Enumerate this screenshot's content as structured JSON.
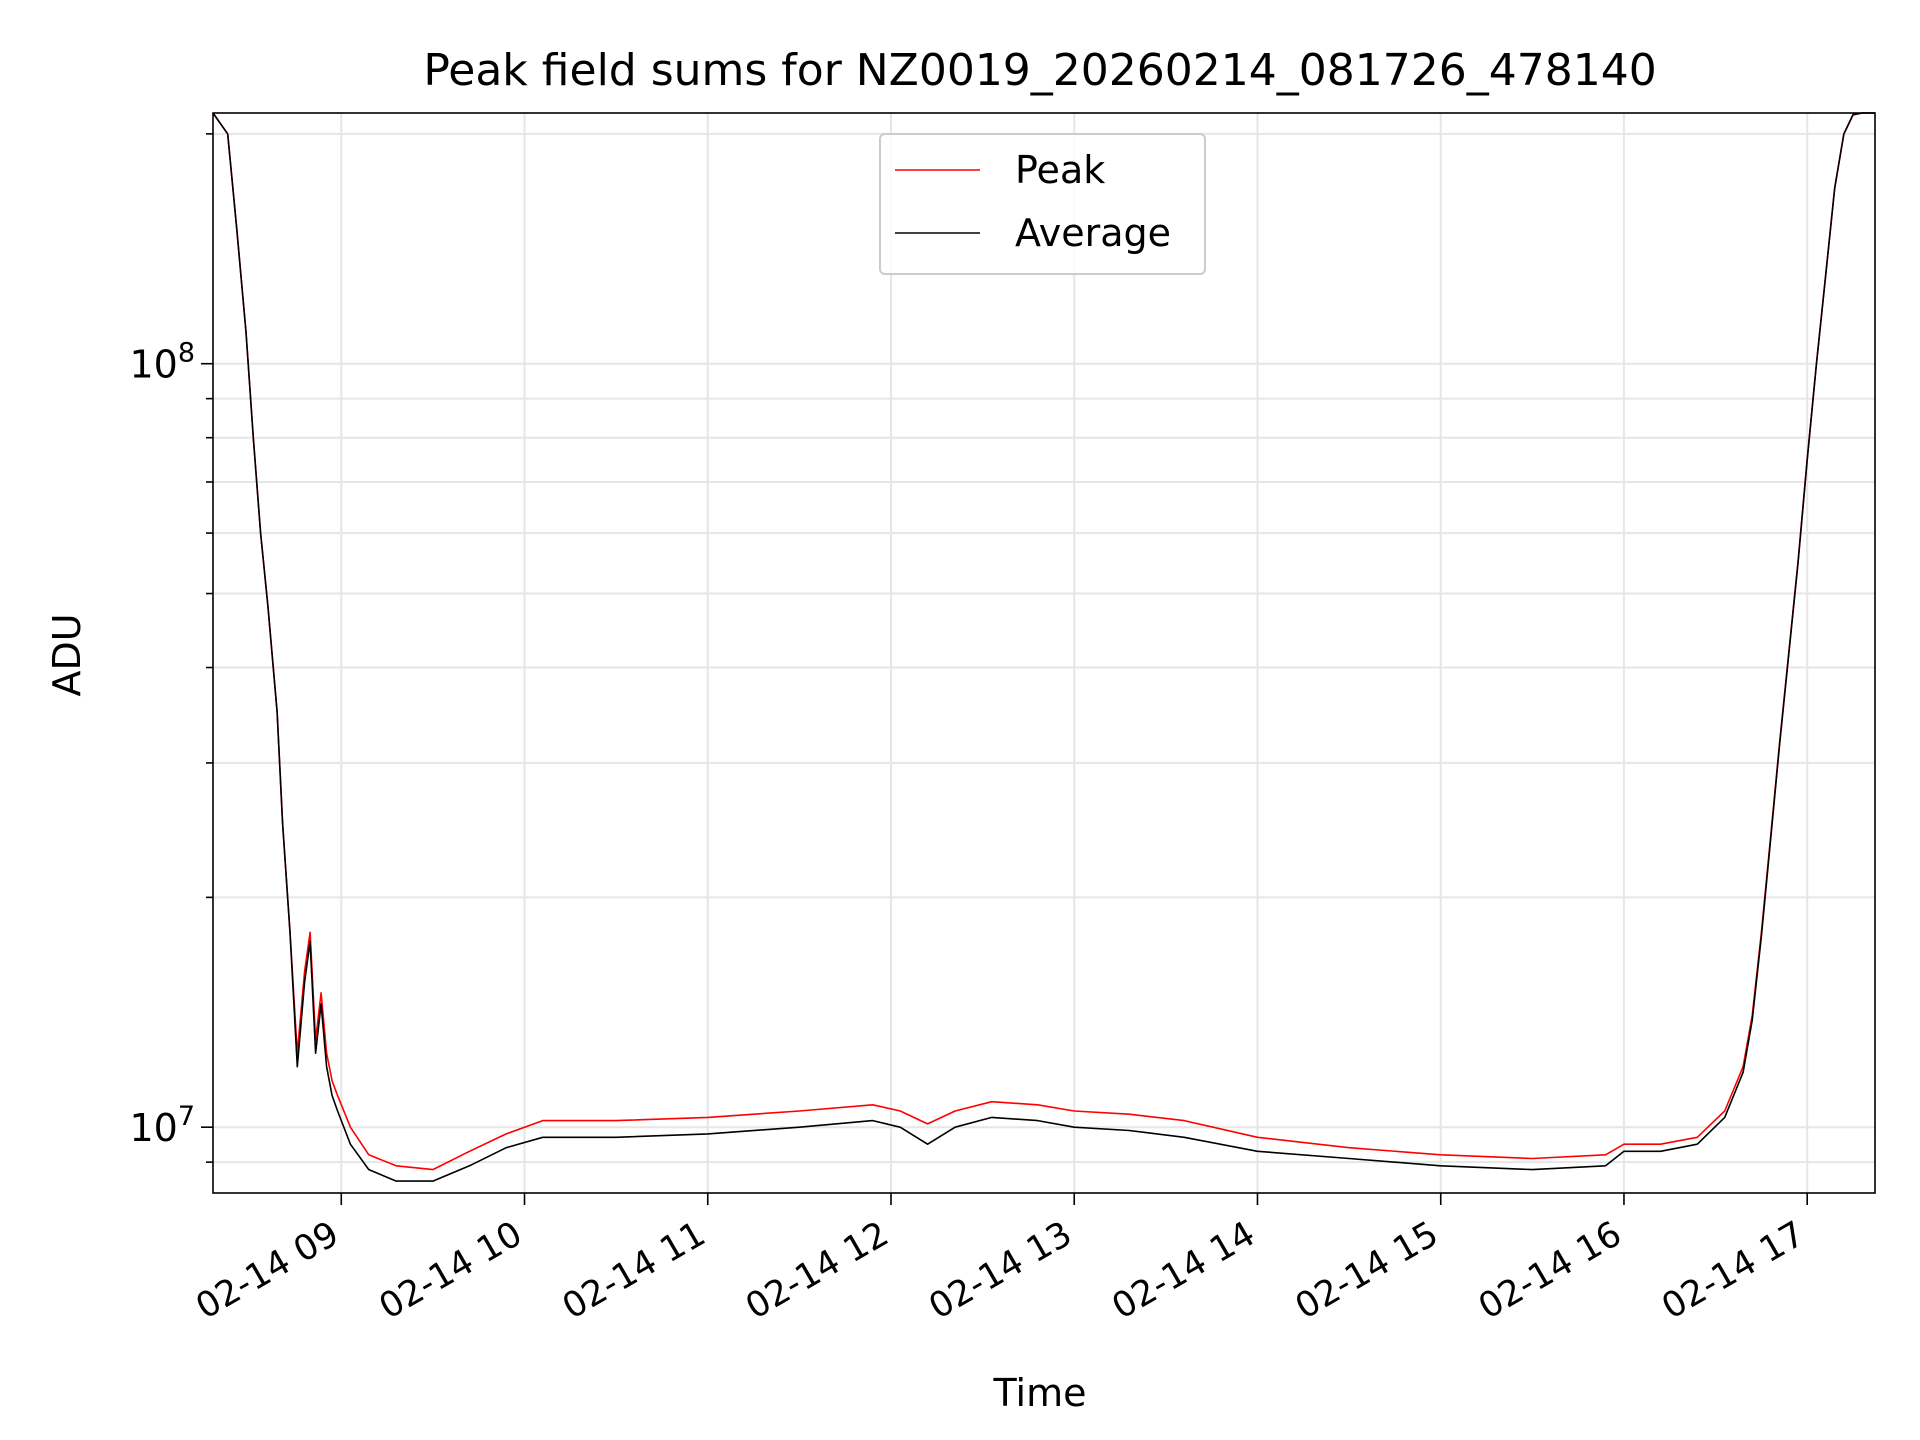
{
  "chart_data": {
    "type": "line",
    "title": "Peak field sums for NZ0019_20260214_081726_478140",
    "xlabel": "Time",
    "ylabel": "ADU",
    "yscale": "log",
    "grid": true,
    "legend_position": "top-center",
    "xlim": [
      8.3,
      17.37
    ],
    "ylim": [
      8200000,
      213000000
    ],
    "x_ticks": [
      9,
      10,
      11,
      12,
      13,
      14,
      15,
      16,
      17
    ],
    "x_tick_labels": [
      "02-14 09",
      "02-14 10",
      "02-14 11",
      "02-14 12",
      "02-14 13",
      "02-14 14",
      "02-14 15",
      "02-14 16",
      "02-14 17"
    ],
    "y_major_ticks": [
      {
        "value": 10000000,
        "base": "10",
        "exp": "7"
      },
      {
        "value": 100000000,
        "base": "10",
        "exp": "8"
      }
    ],
    "series": [
      {
        "name": "Peak",
        "color": "#ff0000",
        "x": [
          8.3,
          8.38,
          8.43,
          8.48,
          8.52,
          8.56,
          8.6,
          8.65,
          8.68,
          8.72,
          8.76,
          8.8,
          8.83,
          8.86,
          8.89,
          8.92,
          8.95,
          8.98,
          9.05,
          9.15,
          9.3,
          9.5,
          9.7,
          9.9,
          10.1,
          10.5,
          11.0,
          11.5,
          11.9,
          12.05,
          12.2,
          12.35,
          12.55,
          12.8,
          13.0,
          13.3,
          13.6,
          14.0,
          14.5,
          15.0,
          15.5,
          15.9,
          16.0,
          16.2,
          16.4,
          16.55,
          16.65,
          16.7,
          16.75,
          16.8,
          16.85,
          16.9,
          16.95,
          17.0,
          17.05,
          17.1,
          17.15,
          17.2,
          17.25,
          17.3,
          17.37
        ],
        "y": [
          213000000,
          200000000,
          150000000,
          110000000,
          80000000,
          60000000,
          48000000,
          35000000,
          25000000,
          18000000,
          12500000,
          16000000,
          18000000,
          13000000,
          15000000,
          12500000,
          11500000,
          11000000,
          10000000,
          9200000,
          8900000,
          8800000,
          9300000,
          9800000,
          10200000,
          10200000,
          10300000,
          10500000,
          10700000,
          10500000,
          10100000,
          10500000,
          10800000,
          10700000,
          10500000,
          10400000,
          10200000,
          9700000,
          9400000,
          9200000,
          9100000,
          9200000,
          9500000,
          9500000,
          9700000,
          10500000,
          12000000,
          14000000,
          18000000,
          24000000,
          32000000,
          42000000,
          55000000,
          75000000,
          100000000,
          130000000,
          170000000,
          200000000,
          212000000,
          213000000,
          213000000
        ]
      },
      {
        "name": "Average",
        "color": "#000000",
        "x": [
          8.3,
          8.38,
          8.43,
          8.48,
          8.52,
          8.56,
          8.6,
          8.65,
          8.68,
          8.72,
          8.76,
          8.8,
          8.83,
          8.86,
          8.89,
          8.92,
          8.95,
          8.98,
          9.05,
          9.15,
          9.3,
          9.5,
          9.7,
          9.9,
          10.1,
          10.5,
          11.0,
          11.5,
          11.9,
          12.05,
          12.2,
          12.35,
          12.55,
          12.8,
          13.0,
          13.3,
          13.6,
          14.0,
          14.5,
          15.0,
          15.5,
          15.9,
          16.0,
          16.2,
          16.4,
          16.55,
          16.65,
          16.7,
          16.75,
          16.8,
          16.85,
          16.9,
          16.95,
          17.0,
          17.05,
          17.1,
          17.15,
          17.2,
          17.25,
          17.3,
          17.37
        ],
        "y": [
          213000000,
          200000000,
          150000000,
          110000000,
          80000000,
          60000000,
          48000000,
          35000000,
          25000000,
          18000000,
          12000000,
          15500000,
          17500000,
          12500000,
          14500000,
          12000000,
          11000000,
          10500000,
          9500000,
          8800000,
          8500000,
          8500000,
          8900000,
          9400000,
          9700000,
          9700000,
          9800000,
          10000000,
          10200000,
          10000000,
          9500000,
          10000000,
          10300000,
          10200000,
          10000000,
          9900000,
          9700000,
          9300000,
          9100000,
          8900000,
          8800000,
          8900000,
          9300000,
          9300000,
          9500000,
          10300000,
          11800000,
          13800000,
          17800000,
          23800000,
          31800000,
          41800000,
          54800000,
          74800000,
          99800000,
          129800000,
          169800000,
          199800000,
          211800000,
          213000000,
          213000000
        ]
      }
    ]
  }
}
